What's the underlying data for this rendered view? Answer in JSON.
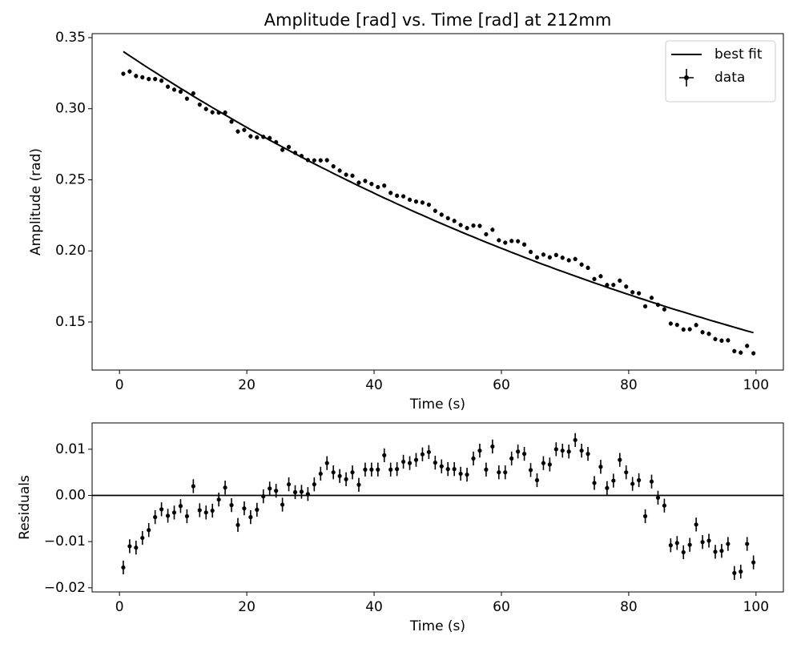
{
  "chart_data": [
    {
      "type": "errorbar",
      "title": "Amplitude [rad] vs. Time [rad]  at 212mm",
      "xlabel": "Time (s)",
      "ylabel": "Amplitude (rad)",
      "xlim": [
        -4.3,
        104.3
      ],
      "ylim": [
        0.1162,
        0.3528
      ],
      "xticks": [
        0,
        20,
        40,
        60,
        80,
        100
      ],
      "yticks": [
        0.15,
        {
          "value": 0.2,
          "label": "0.20"
        },
        0.25,
        {
          "value": 0.3,
          "label": "0.30"
        },
        0.35
      ],
      "legend": "upper right",
      "x": [
        0.6,
        1.6,
        2.6,
        3.6,
        4.6,
        5.6,
        6.6,
        7.6,
        8.6,
        9.6,
        10.6,
        11.6,
        12.6,
        13.6,
        14.6,
        15.6,
        16.6,
        17.6,
        18.6,
        19.6,
        20.6,
        21.6,
        22.6,
        23.6,
        24.6,
        25.6,
        26.6,
        27.6,
        28.6,
        29.6,
        30.6,
        31.6,
        32.6,
        33.6,
        34.6,
        35.6,
        36.6,
        37.6,
        38.6,
        39.6,
        40.6,
        41.6,
        42.6,
        43.6,
        44.6,
        45.6,
        46.6,
        47.6,
        48.6,
        49.6,
        50.6,
        51.6,
        52.6,
        53.6,
        54.6,
        55.6,
        56.6,
        57.6,
        58.6,
        59.6,
        60.6,
        61.6,
        62.6,
        63.6,
        64.6,
        65.6,
        66.6,
        67.6,
        68.6,
        69.6,
        70.6,
        71.6,
        72.6,
        73.6,
        74.6,
        75.6,
        76.6,
        77.6,
        78.6,
        79.6,
        80.6,
        81.6,
        82.6,
        83.6,
        84.6,
        85.6,
        86.6,
        87.6,
        88.6,
        89.6,
        90.6,
        91.6,
        92.6,
        93.6,
        94.6,
        95.6,
        96.6,
        97.6,
        98.6,
        99.6
      ],
      "series": [
        {
          "name": "best fit",
          "color": "#000000",
          "kind": "line",
          "values": [
            0.3402,
            0.3372,
            0.3343,
            0.3313,
            0.3284,
            0.3256,
            0.3227,
            0.3199,
            0.3171,
            0.3143,
            0.3116,
            0.3088,
            0.3061,
            0.3035,
            0.3008,
            0.2982,
            0.2956,
            0.293,
            0.2904,
            0.2879,
            0.2853,
            0.2829,
            0.2804,
            0.2779,
            0.2755,
            0.2731,
            0.2707,
            0.2683,
            0.266,
            0.2636,
            0.2613,
            0.259,
            0.2568,
            0.2545,
            0.2523,
            0.2501,
            0.2479,
            0.2457,
            0.2436,
            0.2415,
            0.2393,
            0.2372,
            0.2352,
            0.2331,
            0.2311,
            0.229,
            0.227,
            0.2251,
            0.2231,
            0.2211,
            0.2192,
            0.2173,
            0.2154,
            0.2135,
            0.2116,
            0.2098,
            0.2079,
            0.2061,
            0.2043,
            0.2025,
            0.2008,
            0.199,
            0.1973,
            0.1955,
            0.1938,
            0.1921,
            0.1904,
            0.1888,
            0.1871,
            0.1855,
            0.1839,
            0.1823,
            0.1807,
            0.1791,
            0.1775,
            0.176,
            0.1744,
            0.1729,
            0.1714,
            0.1699,
            0.1684,
            0.1669,
            0.1655,
            0.164,
            0.1626,
            0.1611,
            0.1597,
            0.1583,
            0.157,
            0.1556,
            0.1542,
            0.1529,
            0.1515,
            0.1502,
            0.1489,
            0.1476,
            0.1463,
            0.145,
            0.1437,
            0.1425
          ]
        },
        {
          "name": "data",
          "color": "#000000",
          "kind": "errorbar",
          "yerr": 0.0015,
          "xerr": 0.25,
          "values": [
            0.3246,
            0.3262,
            0.323,
            0.3221,
            0.3209,
            0.3209,
            0.3197,
            0.3155,
            0.3134,
            0.312,
            0.3071,
            0.3108,
            0.3029,
            0.2998,
            0.2975,
            0.2973,
            0.2973,
            0.2909,
            0.284,
            0.2851,
            0.2806,
            0.2798,
            0.2802,
            0.2794,
            0.2765,
            0.2711,
            0.2731,
            0.269,
            0.2668,
            0.2639,
            0.2637,
            0.2637,
            0.2638,
            0.2595,
            0.2565,
            0.2536,
            0.2529,
            0.248,
            0.2492,
            0.2471,
            0.2449,
            0.2459,
            0.2408,
            0.2388,
            0.2384,
            0.236,
            0.2347,
            0.234,
            0.2325,
            0.2282,
            0.2255,
            0.223,
            0.2211,
            0.2182,
            0.2161,
            0.2178,
            0.2176,
            0.2117,
            0.2149,
            0.2075,
            0.2058,
            0.207,
            0.2068,
            0.2045,
            0.1993,
            0.1954,
            0.1974,
            0.1955,
            0.1971,
            0.1952,
            0.1934,
            0.1943,
            0.1904,
            0.1881,
            0.1802,
            0.1822,
            0.176,
            0.1761,
            0.1791,
            0.1749,
            0.1709,
            0.1702,
            0.161,
            0.167,
            0.1621,
            0.1589,
            0.1489,
            0.148,
            0.1447,
            0.1449,
            0.1479,
            0.1428,
            0.1417,
            0.138,
            0.1369,
            0.1371,
            0.1295,
            0.1285,
            0.1332,
            0.128
          ]
        }
      ]
    },
    {
      "type": "errorbar",
      "xlabel": "Time (s)",
      "ylabel": "Residuals",
      "xlim": [
        -4.3,
        104.3
      ],
      "ylim": [
        -0.0209,
        0.0157
      ],
      "xticks": [
        0,
        20,
        40,
        60,
        80,
        100
      ],
      "yticks": [
        {
          "value": -0.02,
          "label": "−0.02"
        },
        {
          "value": -0.01,
          "label": "−0.01"
        },
        {
          "value": 0,
          "label": "0.00"
        },
        0.01
      ],
      "hline": 0,
      "x": [
        0.6,
        1.6,
        2.6,
        3.6,
        4.6,
        5.6,
        6.6,
        7.6,
        8.6,
        9.6,
        10.6,
        11.6,
        12.6,
        13.6,
        14.6,
        15.6,
        16.6,
        17.6,
        18.6,
        19.6,
        20.6,
        21.6,
        22.6,
        23.6,
        24.6,
        25.6,
        26.6,
        27.6,
        28.6,
        29.6,
        30.6,
        31.6,
        32.6,
        33.6,
        34.6,
        35.6,
        36.6,
        37.6,
        38.6,
        39.6,
        40.6,
        41.6,
        42.6,
        43.6,
        44.6,
        45.6,
        46.6,
        47.6,
        48.6,
        49.6,
        50.6,
        51.6,
        52.6,
        53.6,
        54.6,
        55.6,
        56.6,
        57.6,
        58.6,
        59.6,
        60.6,
        61.6,
        62.6,
        63.6,
        64.6,
        65.6,
        66.6,
        67.6,
        68.6,
        69.6,
        70.6,
        71.6,
        72.6,
        73.6,
        74.6,
        75.6,
        76.6,
        77.6,
        78.6,
        79.6,
        80.6,
        81.6,
        82.6,
        83.6,
        84.6,
        85.6,
        86.6,
        87.6,
        88.6,
        89.6,
        90.6,
        91.6,
        92.6,
        93.6,
        94.6,
        95.6,
        96.6,
        97.6,
        98.6,
        99.6
      ],
      "series": [
        {
          "color": "#000000",
          "kind": "errorbar",
          "yerr": 0.0015,
          "values": [
            -0.0156,
            -0.011,
            -0.0113,
            -0.0092,
            -0.0075,
            -0.0047,
            -0.003,
            -0.0044,
            -0.0037,
            -0.0023,
            -0.0045,
            0.002,
            -0.0032,
            -0.0037,
            -0.0033,
            -0.0009,
            0.0017,
            -0.0021,
            -0.0064,
            -0.0028,
            -0.0047,
            -0.0031,
            -0.0002,
            0.0015,
            0.001,
            -0.002,
            0.0024,
            0.0007,
            0.0008,
            0.0003,
            0.0024,
            0.0047,
            0.007,
            0.005,
            0.0042,
            0.0035,
            0.005,
            0.0023,
            0.0056,
            0.0056,
            0.0056,
            0.0087,
            0.0056,
            0.0057,
            0.0073,
            0.007,
            0.0077,
            0.0089,
            0.0094,
            0.0071,
            0.0063,
            0.0057,
            0.0057,
            0.0047,
            0.0045,
            0.008,
            0.0097,
            0.0056,
            0.0106,
            0.005,
            0.005,
            0.008,
            0.0095,
            0.009,
            0.0055,
            0.0033,
            0.007,
            0.0067,
            0.01,
            0.0097,
            0.0095,
            0.012,
            0.0097,
            0.009,
            0.0027,
            0.0062,
            0.0016,
            0.0032,
            0.0077,
            0.005,
            0.0025,
            0.0033,
            -0.0045,
            0.003,
            -0.0005,
            -0.0022,
            -0.0108,
            -0.0103,
            -0.0123,
            -0.0107,
            -0.0063,
            -0.0101,
            -0.0098,
            -0.0122,
            -0.012,
            -0.0105,
            -0.0168,
            -0.0165,
            -0.0105,
            -0.0145
          ]
        }
      ]
    }
  ]
}
